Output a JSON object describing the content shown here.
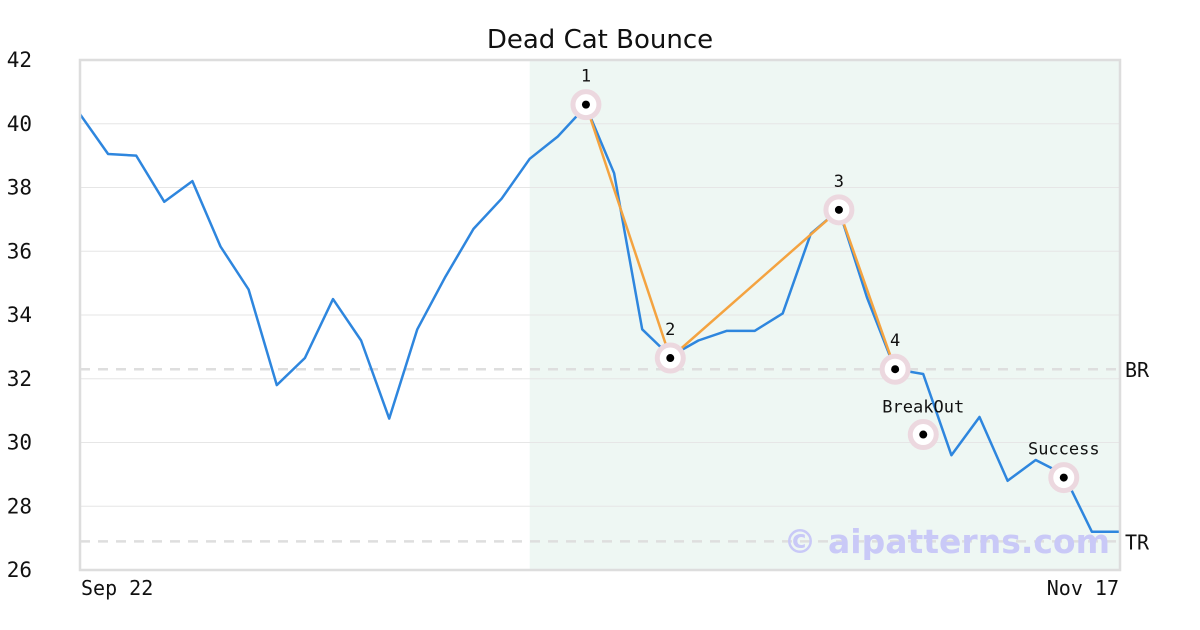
{
  "chart_data": {
    "type": "line",
    "title": "Dead Cat Bounce",
    "xlabel": "",
    "ylabel": "",
    "ylim": [
      26,
      42
    ],
    "yticks": [
      26,
      28,
      30,
      32,
      34,
      36,
      38,
      40,
      42
    ],
    "xtick_labels": [
      "Sep 22",
      "Nov 17"
    ],
    "grid": "horizontal",
    "series": [
      {
        "color": "#2e86de",
        "values": [
          40.3,
          39.05,
          39.0,
          37.55,
          38.2,
          36.15,
          34.8,
          31.8,
          32.65,
          34.5,
          33.2,
          30.75,
          33.55,
          35.2,
          36.7,
          37.65,
          38.9,
          39.6,
          40.55,
          38.45,
          33.55,
          32.7,
          33.2,
          33.5,
          33.5,
          34.05,
          36.55,
          37.3,
          34.55,
          32.3,
          32.15,
          29.6,
          30.8,
          28.8,
          29.45,
          29.0,
          27.2,
          27.2
        ]
      }
    ],
    "pattern_lines": {
      "color": "#f4a340",
      "points": [
        [
          18,
          40.6
        ],
        [
          21,
          32.65
        ],
        [
          27,
          37.3
        ],
        [
          29,
          32.3
        ]
      ]
    },
    "highlight_range": [
      16,
      37
    ],
    "reference_lines": [
      {
        "label": "BR",
        "value": 32.3
      },
      {
        "label": "TR",
        "value": 26.9
      }
    ],
    "markers": [
      {
        "label": "1",
        "index": 18,
        "value": 40.6
      },
      {
        "label": "2",
        "index": 21,
        "value": 32.65
      },
      {
        "label": "3",
        "index": 27,
        "value": 37.3
      },
      {
        "label": "4",
        "index": 29,
        "value": 32.3
      },
      {
        "label": "BreakOut",
        "index": 30,
        "value": 30.25
      },
      {
        "label": "Success",
        "index": 35,
        "value": 28.9
      }
    ],
    "watermark": "© aipatterns.com"
  }
}
